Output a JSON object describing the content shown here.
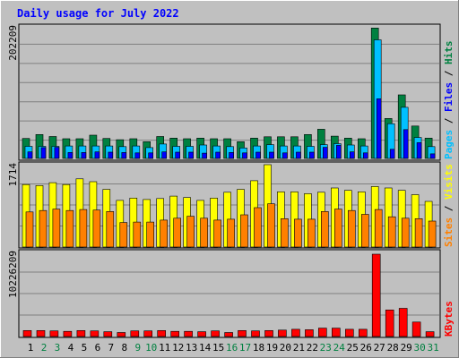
{
  "chart_data": [
    {
      "type": "bar",
      "title": "Daily usage for July 2022",
      "categories": [
        "1",
        "2",
        "3",
        "4",
        "5",
        "6",
        "7",
        "8",
        "9",
        "10",
        "11",
        "12",
        "13",
        "14",
        "15",
        "16",
        "17",
        "18",
        "19",
        "20",
        "21",
        "22",
        "23",
        "24",
        "25",
        "26",
        "27",
        "28",
        "29",
        "30",
        "31"
      ],
      "weekend_categories": [
        "2",
        "3",
        "9",
        "10",
        "16",
        "17",
        "23",
        "24",
        "30",
        "31"
      ],
      "ylabel_max": "202209",
      "ylim": [
        0,
        202209
      ],
      "legend": [
        "Pages",
        "Files",
        "Hits"
      ],
      "series": [
        {
          "name": "Hits",
          "color": "#008040",
          "values": [
            30500,
            36500,
            33500,
            30000,
            30000,
            35500,
            30500,
            28500,
            30000,
            25500,
            33500,
            31000,
            30000,
            31000,
            30000,
            30000,
            25500,
            31000,
            33000,
            33000,
            33000,
            36500,
            44500,
            34000,
            31000,
            30000,
            199000,
            61000,
            97000,
            49500,
            31000
          ]
        },
        {
          "name": "Files",
          "color": "#00c0ff",
          "values": [
            18500,
            18500,
            18500,
            19000,
            19000,
            19000,
            19000,
            18000,
            19000,
            16500,
            22000,
            18500,
            18500,
            20500,
            19000,
            18000,
            16000,
            19000,
            21000,
            19000,
            19000,
            18500,
            21000,
            22500,
            20500,
            19000,
            181000,
            53000,
            78000,
            32000,
            18000
          ]
        },
        {
          "name": "Pages",
          "color": "#0000ff",
          "values": [
            10000,
            16500,
            17000,
            9000,
            9000,
            10000,
            9500,
            9000,
            8500,
            8500,
            10000,
            9500,
            9500,
            8000,
            9500,
            9000,
            8500,
            9500,
            9500,
            8500,
            9500,
            9500,
            17000,
            20000,
            10000,
            8500,
            91000,
            14000,
            44000,
            24000,
            7000
          ]
        }
      ]
    },
    {
      "type": "bar",
      "ylabel_max": "1714",
      "ylim": [
        0,
        1714
      ],
      "legend": [
        "Sites",
        "Visits"
      ],
      "series": [
        {
          "name": "Visits",
          "color": "#ffff00",
          "values": [
            1300,
            1280,
            1340,
            1300,
            1420,
            1360,
            1200,
            970,
            1020,
            990,
            1010,
            1060,
            1030,
            970,
            1020,
            1140,
            1200,
            1380,
            1714,
            1150,
            1150,
            1110,
            1140,
            1230,
            1180,
            1150,
            1260,
            1230,
            1180,
            1090,
            950
          ]
        },
        {
          "name": "Sites",
          "color": "#ff8000",
          "values": [
            730,
            760,
            790,
            760,
            780,
            770,
            740,
            510,
            520,
            520,
            560,
            600,
            640,
            600,
            560,
            580,
            670,
            820,
            900,
            590,
            580,
            580,
            740,
            790,
            760,
            680,
            780,
            630,
            600,
            590,
            540
          ]
        }
      ]
    },
    {
      "type": "bar",
      "ylabel_max": "10226209",
      "ylim": [
        0,
        10226209
      ],
      "legend": [
        "KBytes"
      ],
      "series": [
        {
          "name": "KBytes",
          "color": "#ff0000",
          "values": [
            750000,
            750000,
            700000,
            650000,
            750000,
            700000,
            600000,
            500000,
            700000,
            700000,
            750000,
            650000,
            650000,
            600000,
            700000,
            500000,
            750000,
            700000,
            750000,
            800000,
            900000,
            850000,
            1050000,
            1050000,
            900000,
            900000,
            10226209,
            3300000,
            3500000,
            1800000,
            600000
          ]
        }
      ]
    }
  ]
}
